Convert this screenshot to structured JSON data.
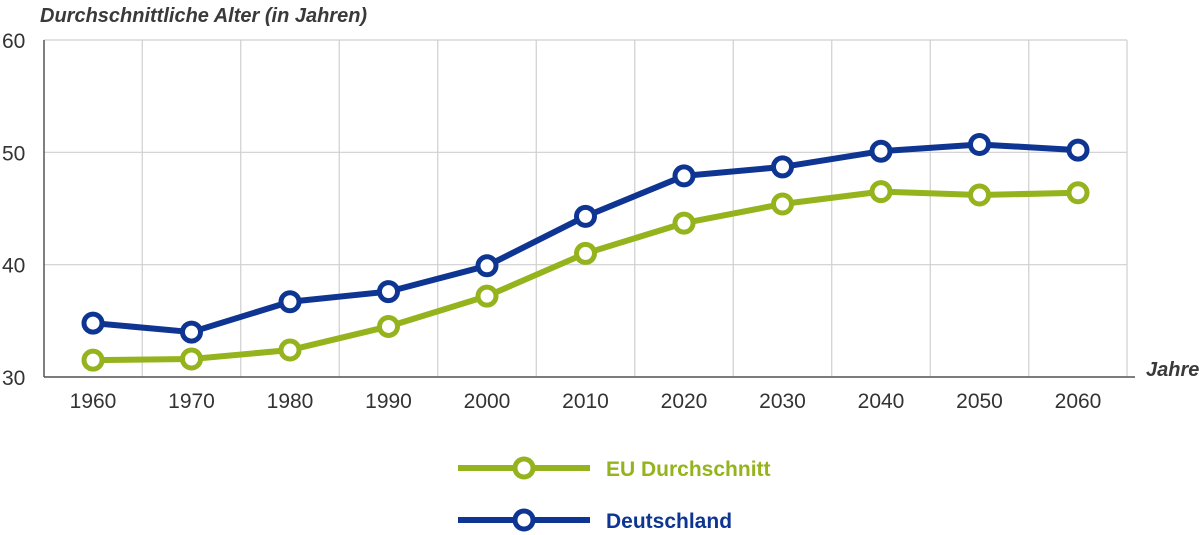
{
  "chart_data": {
    "type": "line",
    "ylabel": "Durchschnittliche Alter (in Jahren)",
    "xlabel": "Jahre",
    "x": [
      "1960",
      "1970",
      "1980",
      "1990",
      "2000",
      "2010",
      "2020",
      "2030",
      "2040",
      "2050",
      "2060"
    ],
    "ylim": [
      30,
      60
    ],
    "yticks": [
      "30",
      "40",
      "50",
      "60"
    ],
    "grid": true,
    "legend_position": "bottom-center",
    "series": [
      {
        "name": "EU Durchschnitt",
        "color": "#94b31c",
        "values": [
          31.5,
          31.6,
          32.4,
          34.5,
          37.2,
          41.0,
          43.7,
          45.4,
          46.5,
          46.2,
          46.4
        ]
      },
      {
        "name": "Deutschland",
        "color": "#0d3591",
        "values": [
          34.8,
          34.0,
          36.7,
          37.6,
          39.9,
          44.3,
          47.9,
          48.7,
          50.1,
          50.7,
          50.2
        ]
      }
    ]
  }
}
